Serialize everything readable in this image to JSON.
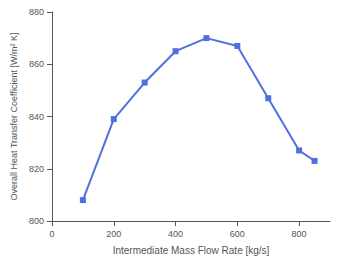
{
  "chart_data": {
    "type": "line",
    "x": [
      100,
      200,
      300,
      400,
      500,
      600,
      700,
      800,
      850
    ],
    "values": [
      808,
      839,
      853,
      865,
      870,
      867,
      847,
      827,
      823
    ],
    "xlim": [
      0,
      900
    ],
    "ylim": [
      800,
      880
    ],
    "xticks": [
      0,
      200,
      400,
      600,
      800
    ],
    "yticks": [
      800,
      820,
      840,
      860,
      880
    ],
    "xlabel": "Intermediate Mass Flow Rate [kg/s]",
    "ylabel": "Overall Heat Transfer Coefficient [W/m² K]",
    "marker": "square",
    "line_style": "solid",
    "grid": false
  }
}
